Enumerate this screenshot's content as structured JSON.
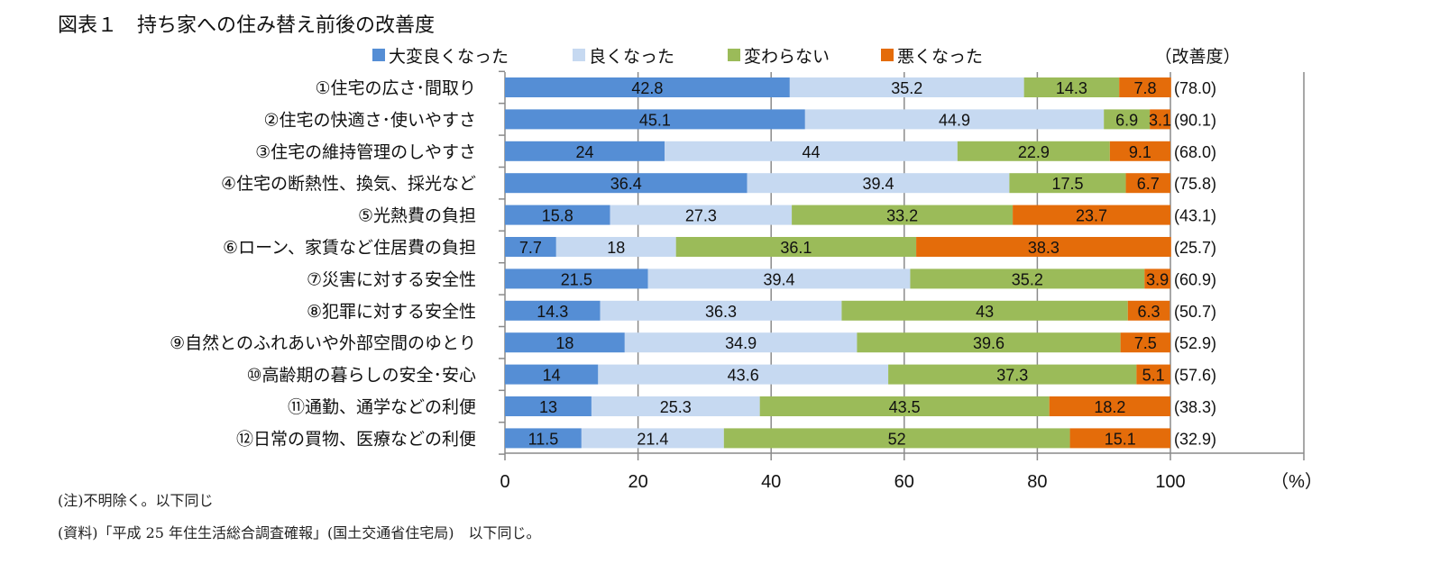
{
  "title": "図表１　持ち家への住み替え前後の改善度",
  "notes": [
    "(注)不明除く。以下同じ",
    "(資料)「平成 25 年住生活総合調査確報」(国土交通省住宅局)　以下同じ。"
  ],
  "chart_data": {
    "type": "bar",
    "orientation": "horizontal",
    "stacked": true,
    "title": "",
    "xlabel": "",
    "xunit": "（%）",
    "xlim": [
      0,
      100
    ],
    "xticks": [
      "0",
      "20",
      "40",
      "60",
      "80",
      "100"
    ],
    "grid": true,
    "legend_position": "top",
    "extra_column_header": "（改善度）",
    "categories": [
      "①住宅の広さ･間取り",
      "②住宅の快適さ･使いやすさ",
      "③住宅の維持管理のしやすさ",
      "④住宅の断熱性、換気、採光など",
      "⑤光熱費の負担",
      "⑥ローン、家賃など住居費の負担",
      "⑦災害に対する安全性",
      "⑧犯罪に対する安全性",
      "⑨自然とのふれあいや外部空間のゆとり",
      "⑩高齢期の暮らしの安全･安心",
      "⑪通勤、通学などの利便",
      "⑫日常の買物、医療などの利便"
    ],
    "series": [
      {
        "name": "大変良くなった",
        "color": "#558ED5",
        "values": [
          42.8,
          45.1,
          24.0,
          36.4,
          15.8,
          7.7,
          21.5,
          14.3,
          18.0,
          14.0,
          13.0,
          11.5
        ]
      },
      {
        "name": "良くなった",
        "color": "#C6D9F1",
        "values": [
          35.2,
          44.9,
          44.0,
          39.4,
          27.3,
          18.0,
          39.4,
          36.3,
          34.9,
          43.6,
          25.3,
          21.4
        ]
      },
      {
        "name": "変わらない",
        "color": "#9BBB59",
        "values": [
          14.3,
          6.9,
          22.9,
          17.5,
          33.2,
          36.1,
          35.2,
          43.0,
          39.6,
          37.3,
          43.5,
          52.0
        ]
      },
      {
        "name": "悪くなった",
        "color": "#E46C0A",
        "values": [
          7.8,
          3.1,
          9.1,
          6.7,
          23.7,
          38.3,
          3.9,
          6.3,
          7.5,
          5.1,
          18.2,
          15.1
        ]
      }
    ],
    "improvement": [
      "(78.0)",
      "(90.1)",
      "(68.0)",
      "(75.8)",
      "(43.1)",
      "(25.7)",
      "(60.9)",
      "(50.7)",
      "(52.9)",
      "(57.6)",
      "(38.3)",
      "(32.9)"
    ]
  }
}
